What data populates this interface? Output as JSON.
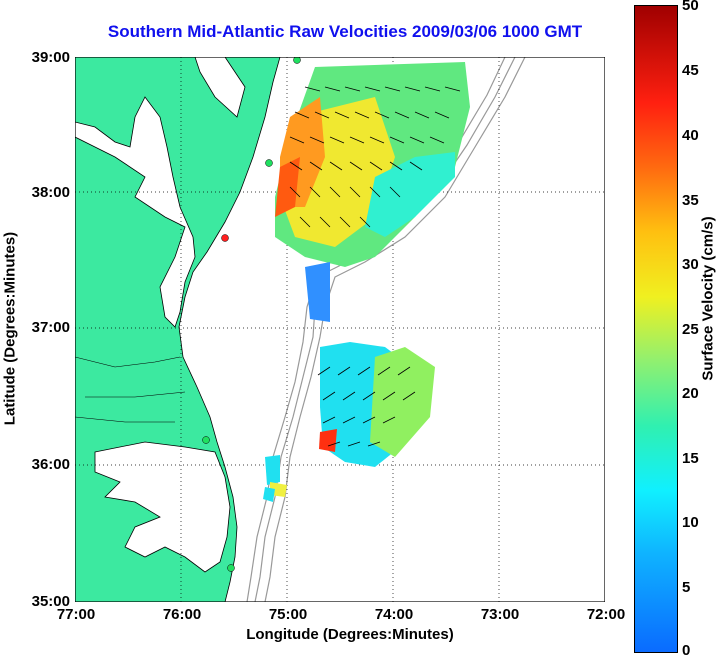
{
  "title": "Southern Mid-Atlantic Raw Velocities 2009/03/06 1000 GMT",
  "xaxis_title": "Longitude (Degrees:Minutes)",
  "yaxis_title": "Latitude (Degrees:Minutes)",
  "colorbar_title": "Surface Velocity (cm/s)",
  "lat_ticks": [
    "39:00",
    "38:00",
    "37:00",
    "36:00",
    "35:00"
  ],
  "lon_ticks": [
    "77:00",
    "76:00",
    "75:00",
    "74:00",
    "73:00",
    "72:00"
  ],
  "colorbar_ticks": [
    "50",
    "45",
    "40",
    "35",
    "30",
    "25",
    "20",
    "15",
    "10",
    "5",
    "0"
  ],
  "colors": {
    "land": "#3ce9a0",
    "title": "#1010ee",
    "bathymetry": "#999999"
  },
  "colorbar_range": [
    0,
    50
  ]
}
